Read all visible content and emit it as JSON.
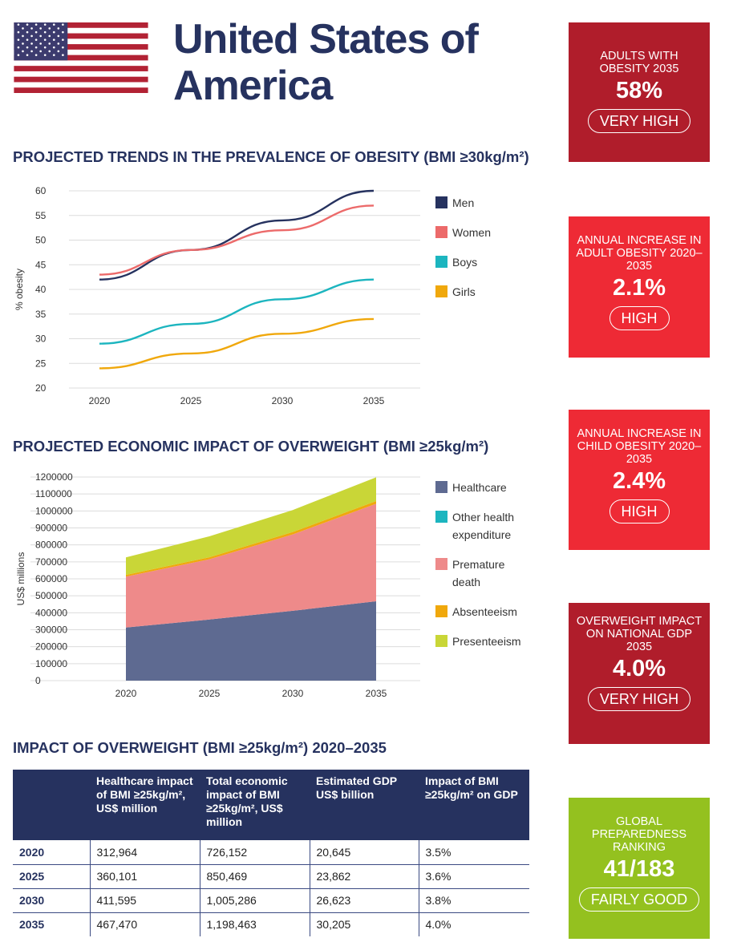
{
  "title": "United States of America",
  "sections": {
    "trends": "PROJECTED TRENDS IN THE PREVALENCE OF OBESITY (BMI ≥30kg/m²)",
    "economic": "PROJECTED ECONOMIC IMPACT OF OVERWEIGHT (BMI ≥25kg/m²)",
    "impact": "IMPACT OF OVERWEIGHT (BMI ≥25kg/m²) 2020–2035"
  },
  "kpis": [
    {
      "label": "ADULTS WITH OBESITY 2035",
      "value": "58%",
      "level": "VERY HIGH",
      "color": "#b01d2b"
    },
    {
      "label": "ANNUAL INCREASE IN ADULT OBESITY 2020–2035",
      "value": "2.1%",
      "level": "HIGH",
      "color": "#ee2a35"
    },
    {
      "label": "ANNUAL INCREASE IN CHILD OBESITY 2020–2035",
      "value": "2.4%",
      "level": "HIGH",
      "color": "#ee2a35"
    },
    {
      "label": "OVERWEIGHT IMPACT ON NATIONAL GDP 2035",
      "value": "4.0%",
      "level": "VERY HIGH",
      "color": "#b01d2b"
    },
    {
      "label": "GLOBAL PREPAREDNESS RANKING",
      "value": "41/183",
      "level": "FAIRLY GOOD",
      "color": "#94c11f"
    }
  ],
  "table": {
    "headers": [
      "",
      "Healthcare impact of BMI ≥25kg/m², US$ million",
      "Total economic impact of BMI ≥25kg/m², US$ million",
      "Estimated GDP US$ billion",
      "Impact of BMI ≥25kg/m² on GDP"
    ],
    "rows": [
      [
        "2020",
        "312,964",
        "726,152",
        "20,645",
        "3.5%"
      ],
      [
        "2025",
        "360,101",
        "850,469",
        "23,862",
        "3.6%"
      ],
      [
        "2030",
        "411,595",
        "1,005,286",
        "26,623",
        "3.8%"
      ],
      [
        "2035",
        "467,470",
        "1,198,463",
        "30,205",
        "4.0%"
      ]
    ]
  },
  "chart_data": [
    {
      "type": "line",
      "title": "PROJECTED TRENDS IN THE PREVALENCE OF OBESITY (BMI ≥30kg/m²)",
      "xlabel": "",
      "ylabel": "% obesity",
      "x": [
        2020,
        2025,
        2030,
        2035
      ],
      "ylim": [
        20,
        60
      ],
      "yticks": [
        60,
        55,
        50,
        45,
        40,
        35,
        30,
        25,
        20
      ],
      "grid": true,
      "legend": "right",
      "series": [
        {
          "name": "Men",
          "color": "#26325f",
          "values": [
            42,
            48,
            54,
            60
          ]
        },
        {
          "name": "Women",
          "color": "#ec6a6a",
          "values": [
            43,
            48,
            52,
            57
          ]
        },
        {
          "name": "Boys",
          "color": "#1cb5bf",
          "values": [
            29,
            33,
            38,
            42
          ]
        },
        {
          "name": "Girls",
          "color": "#f0a80c",
          "values": [
            24,
            27,
            31,
            34
          ]
        }
      ]
    },
    {
      "type": "area",
      "title": "PROJECTED ECONOMIC IMPACT OF OVERWEIGHT (BMI ≥25kg/m²)",
      "xlabel": "",
      "ylabel": "US$ millions",
      "x": [
        2020,
        2025,
        2030,
        2035
      ],
      "ylim": [
        0,
        1200000
      ],
      "yticks": [
        1200000,
        1100000,
        1000000,
        900000,
        800000,
        700000,
        600000,
        500000,
        400000,
        300000,
        200000,
        100000,
        0
      ],
      "grid": true,
      "legend": "right",
      "stacked": true,
      "series": [
        {
          "name": "Healthcare",
          "color": "#5e6a91",
          "values": [
            312964,
            360101,
            411595,
            467470
          ]
        },
        {
          "name": "Other health expenditure",
          "color": "#1cb5bf",
          "values": [
            0,
            0,
            0,
            0
          ]
        },
        {
          "name": "Premature death",
          "color": "#ee8a8a",
          "values": [
            300000,
            355000,
            450000,
            575000
          ]
        },
        {
          "name": "Absenteeism",
          "color": "#f0a80c",
          "values": [
            10000,
            12000,
            14000,
            16000
          ]
        },
        {
          "name": "Presenteeism",
          "color": "#c9d637",
          "values": [
            103188,
            123368,
            129691,
            139993
          ]
        }
      ]
    }
  ]
}
